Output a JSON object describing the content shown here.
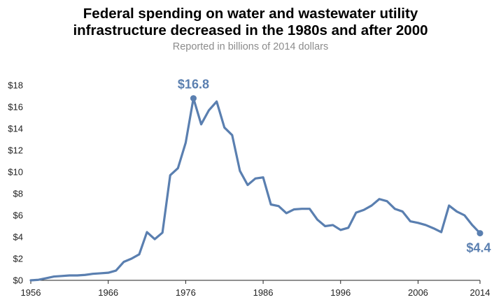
{
  "title_line1": "Federal spending on water and wastewater utility",
  "title_line2": "infrastructure decreased in the 1980s and after 2000",
  "subtitle": "Reported in billions of 2014 dollars",
  "colors": {
    "series": "#5a7fb0",
    "axis": "#222222",
    "subtitle": "#8c8c8c"
  },
  "chart_data": {
    "type": "line",
    "title": "Federal spending on water and wastewater utility infrastructure decreased in the 1980s and after 2000",
    "subtitle": "Reported in billions of 2014 dollars",
    "xlabel": "",
    "ylabel": "",
    "xlim": [
      1956,
      2014
    ],
    "ylim": [
      0,
      18
    ],
    "grid": false,
    "x_ticks": [
      1956,
      1966,
      1976,
      1986,
      1996,
      2006,
      2014
    ],
    "y_ticks": [
      0,
      2,
      4,
      6,
      8,
      10,
      12,
      14,
      16,
      18
    ],
    "y_tick_labels": [
      "$0",
      "$2",
      "$4",
      "$6",
      "$8",
      "$10",
      "$12",
      "$14",
      "$16",
      "$18"
    ],
    "x": [
      1956,
      1957,
      1958,
      1959,
      1960,
      1961,
      1962,
      1963,
      1964,
      1965,
      1966,
      1967,
      1968,
      1969,
      1970,
      1971,
      1972,
      1973,
      1974,
      1975,
      1976,
      1977,
      1978,
      1979,
      1980,
      1981,
      1982,
      1983,
      1984,
      1985,
      1986,
      1987,
      1988,
      1989,
      1990,
      1991,
      1992,
      1993,
      1994,
      1995,
      1996,
      1997,
      1998,
      1999,
      2000,
      2001,
      2002,
      2003,
      2004,
      2005,
      2006,
      2007,
      2008,
      2009,
      2010,
      2011,
      2012,
      2013,
      2014
    ],
    "values": [
      0.0,
      0.05,
      0.2,
      0.35,
      0.4,
      0.45,
      0.45,
      0.5,
      0.6,
      0.65,
      0.7,
      0.9,
      1.7,
      2.0,
      2.4,
      4.45,
      3.8,
      4.4,
      9.7,
      10.35,
      12.7,
      16.8,
      14.4,
      15.7,
      16.5,
      14.1,
      13.4,
      10.1,
      8.8,
      9.4,
      9.5,
      7.0,
      6.85,
      6.2,
      6.55,
      6.6,
      6.6,
      5.6,
      5.0,
      5.1,
      4.65,
      4.85,
      6.25,
      6.5,
      6.9,
      7.5,
      7.3,
      6.6,
      6.35,
      5.45,
      5.3,
      5.1,
      4.8,
      4.45,
      6.9,
      6.35,
      6.0,
      5.1,
      4.35
    ],
    "annotations": [
      {
        "x": 1977,
        "y": 16.8,
        "label": "$16.8"
      },
      {
        "x": 2014,
        "y": 4.35,
        "label": "$4.4"
      }
    ]
  }
}
